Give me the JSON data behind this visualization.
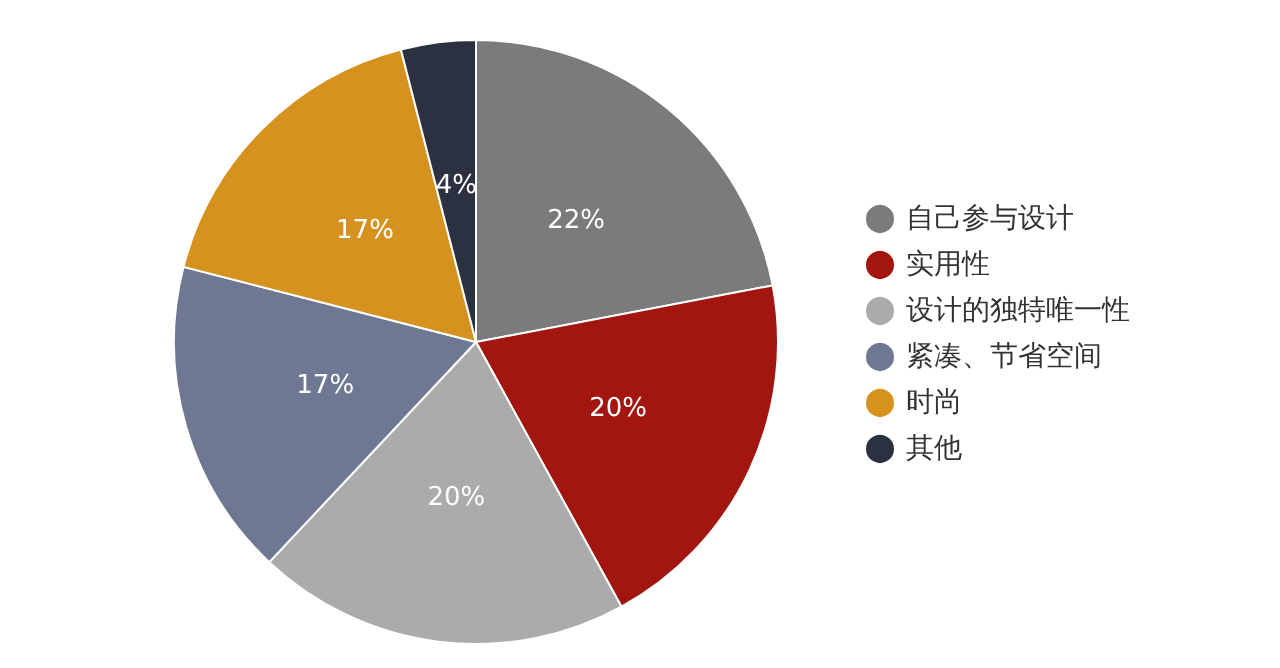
{
  "chart_data": {
    "type": "pie",
    "categories": [
      "自己参与设计",
      "实用性",
      "设计的独特唯一性",
      "紧凑、节省空间",
      "时尚",
      "其他"
    ],
    "values": [
      22,
      20,
      20,
      17,
      17,
      4
    ],
    "colors": [
      "#7b7b7b",
      "#a3150f",
      "#ababab",
      "#6e7893",
      "#d6921f",
      "#2c3142"
    ],
    "value_labels": [
      "22%",
      "20%",
      "20%",
      "17%",
      "17%",
      "4%"
    ],
    "legend": "right"
  }
}
